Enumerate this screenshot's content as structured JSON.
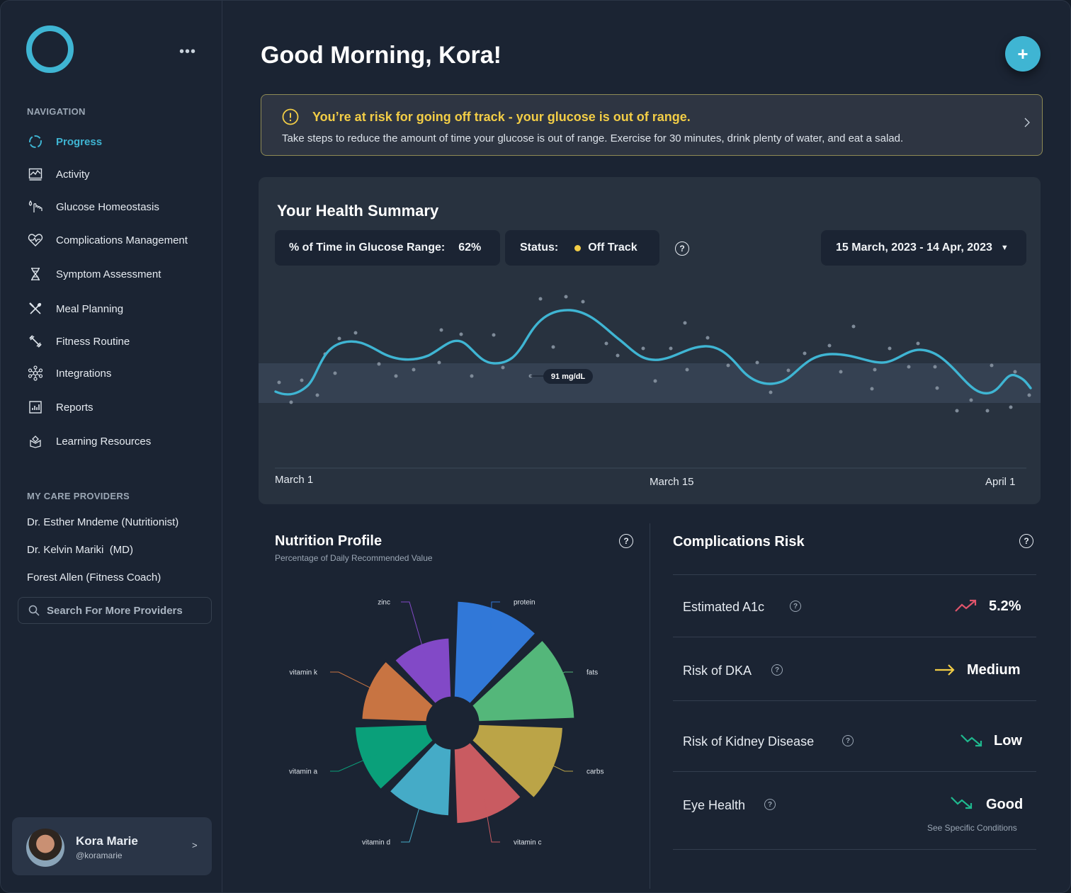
{
  "sidebar": {
    "nav_label": "NAVIGATION",
    "items": [
      {
        "label": "Progress",
        "icon": "progress-ring-icon",
        "active": true
      },
      {
        "label": "Activity",
        "icon": "activity-chart-icon"
      },
      {
        "label": "Glucose Homeostasis",
        "icon": "finger-drop-icon"
      },
      {
        "label": "Complications Management",
        "icon": "heart-pulse-icon"
      },
      {
        "label": "Symptom Assessment",
        "icon": "dna-icon"
      },
      {
        "label": "Meal Planning",
        "icon": "utensils-icon"
      },
      {
        "label": "Fitness Routine",
        "icon": "dumbbell-icon"
      },
      {
        "label": "Integrations",
        "icon": "network-icon"
      },
      {
        "label": "Reports",
        "icon": "report-chart-icon"
      },
      {
        "label": "Learning Resources",
        "icon": "learning-icon"
      }
    ],
    "providers_label": "MY CARE PROVIDERS",
    "providers": [
      "Dr. Esther Mndeme (Nutritionist)",
      "Dr. Kelvin Mariki  (MD)",
      "Forest Allen (Fitness Coach)"
    ],
    "search_label": "Search For More Providers",
    "user": {
      "name": "Kora Marie",
      "handle": "@koramarie",
      "chevron": ">"
    }
  },
  "header": {
    "greeting": "Good Morning, Kora!",
    "add_label": "+"
  },
  "alert": {
    "title": "You’re at risk for going off track - your glucose is out of range.",
    "text": "Take steps to reduce the amount of time your glucose is out of range. Exercise for 30 minutes, drink plenty of water, and eat a salad."
  },
  "summary": {
    "title": "Your Health Summary",
    "range_label": "% of Time in Glucose Range:",
    "range_value": "62%",
    "status_label": "Status:",
    "status_value": "Off Track",
    "status_color": "#f2cd46",
    "date_range": "15 March, 2023 - 14 Apr, 2023",
    "tooltip": "91 mg/dL",
    "x_labels": [
      "March 1",
      "March 15",
      "April 1"
    ]
  },
  "nutrition": {
    "title": "Nutrition Profile",
    "subtitle": "Percentage of Daily Recommended Value"
  },
  "chart_data": {
    "type": "pie",
    "title": "Nutrition Profile",
    "subtitle": "Percentage of Daily Recommended Value",
    "categories": [
      "protein",
      "fats",
      "carbs",
      "vitamin c",
      "vitamin d",
      "vitamin a",
      "vitamin k",
      "zinc"
    ],
    "values": [
      100,
      100,
      88,
      78,
      70,
      75,
      68,
      62
    ],
    "colors": [
      "#3178d8",
      "#54b77a",
      "#bba447",
      "#c95b61",
      "#45abc7",
      "#0aa07a",
      "#c87442",
      "#8249c7"
    ]
  },
  "risks": {
    "title": "Complications Risk",
    "items": [
      {
        "label": "Estimated A1c",
        "value": "5.2%",
        "trend": "trend-up-icon",
        "color": "#e0546b"
      },
      {
        "label": "Risk of DKA",
        "value": "Medium",
        "trend": "arrow-right-icon",
        "color": "#f2cd46"
      },
      {
        "label": "Risk of Kidney Disease",
        "value": "Low",
        "trend": "trend-down-icon",
        "color": "#1fb88e"
      },
      {
        "label": "Eye Health",
        "value": "Good",
        "trend": "trend-down-icon",
        "color": "#1fb88e"
      }
    ],
    "note": "See Specific Conditions"
  }
}
